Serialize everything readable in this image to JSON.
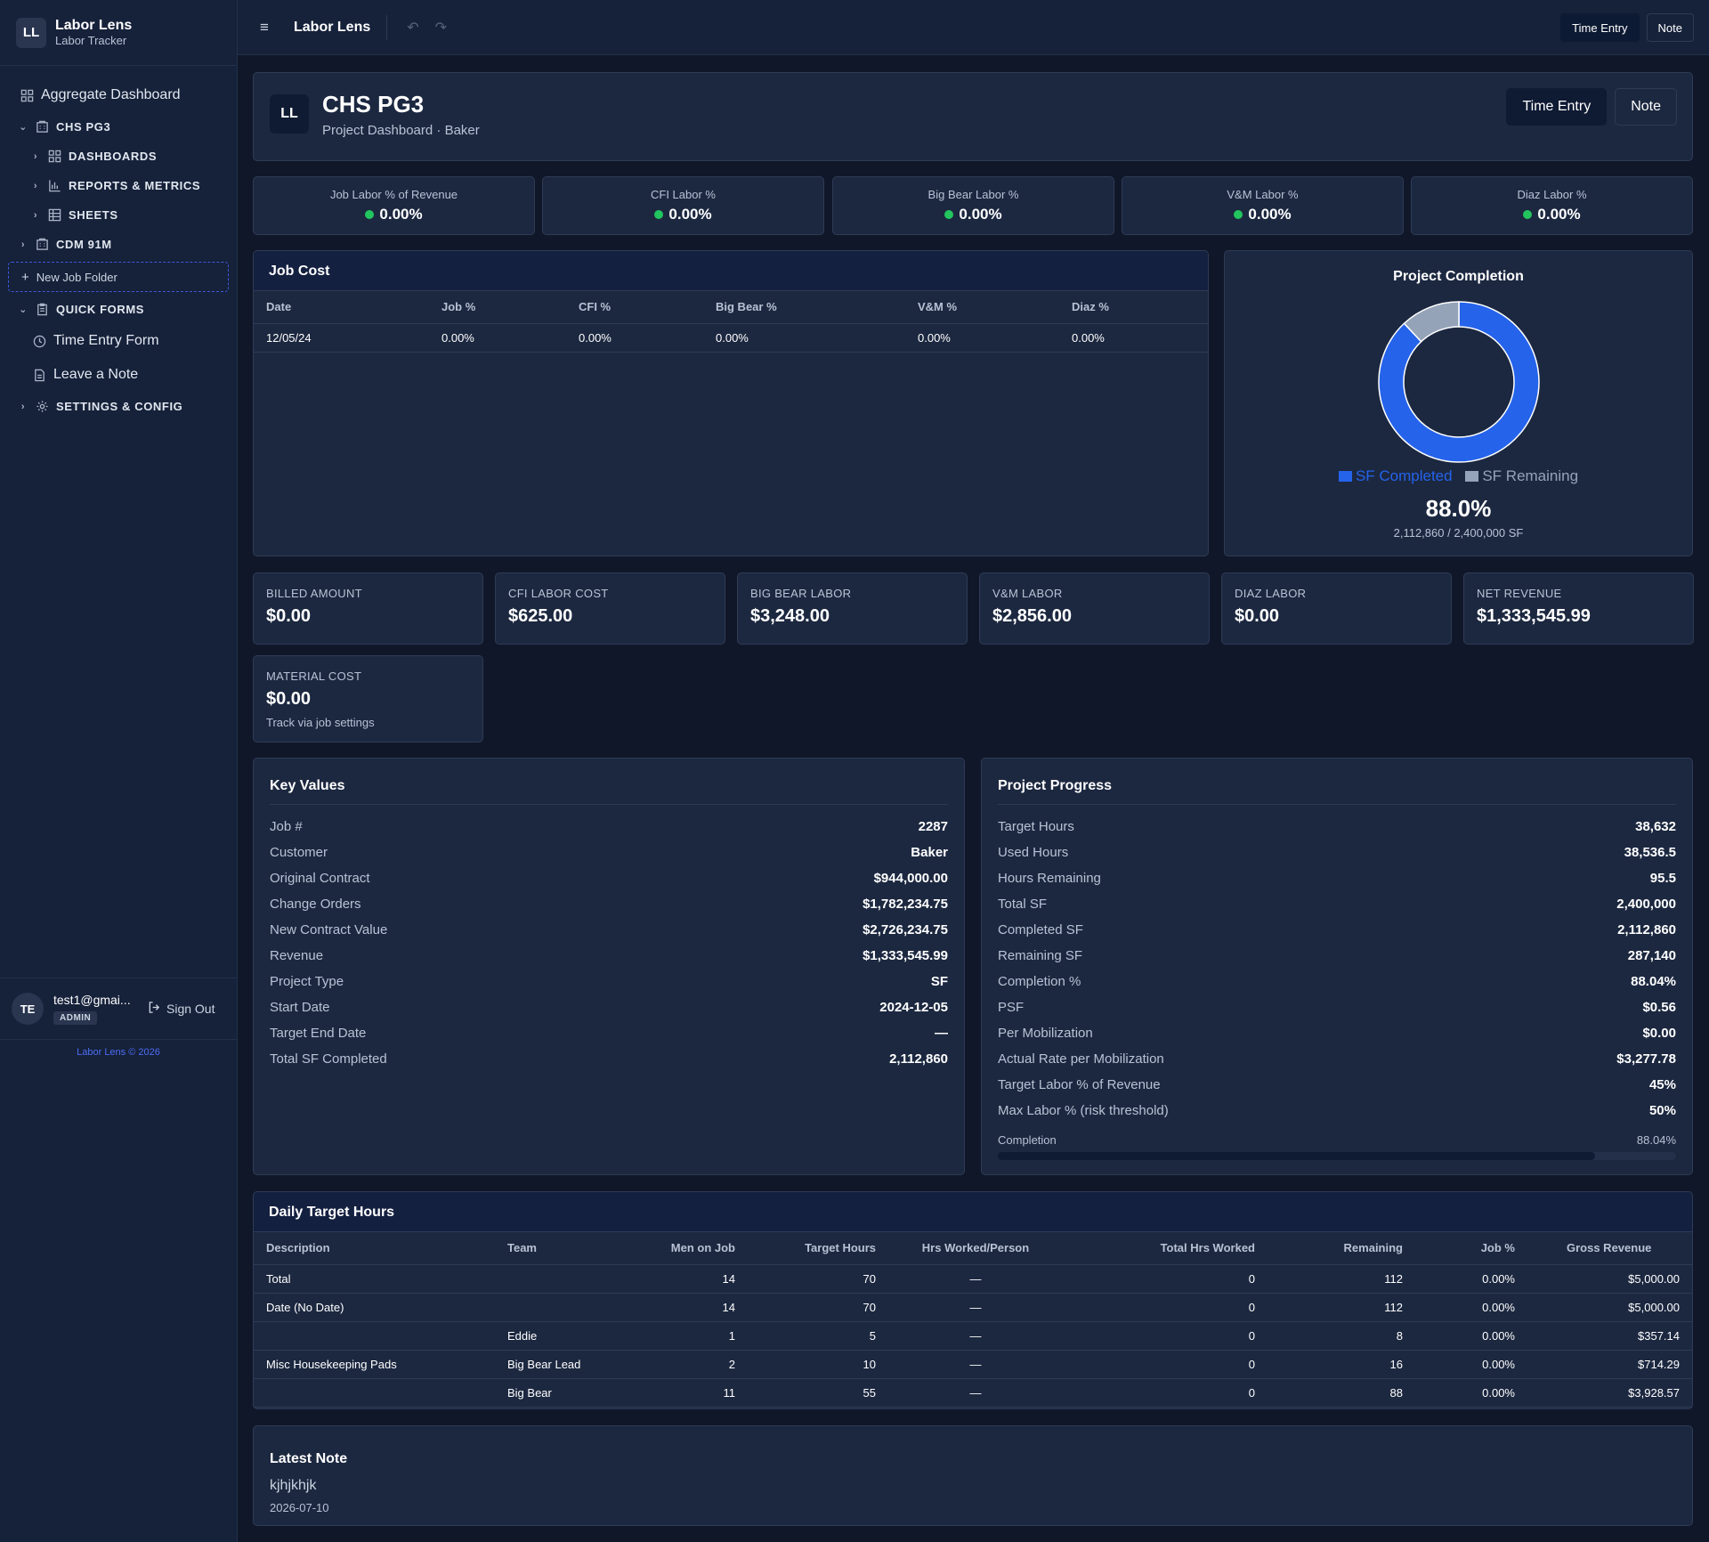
{
  "sidebar": {
    "logo": "LL",
    "app_name": "Labor Lens",
    "app_sub": "Labor Tracker",
    "items": {
      "aggregate": "Aggregate Dashboard",
      "project": "CHS PG3",
      "dashboards": "DASHBOARDS",
      "reports": "REPORTS & METRICS",
      "sheets": "SHEETS",
      "project2": "CDM 91M",
      "new_folder": "New Job Folder",
      "quick_forms": "QUICK FORMS",
      "time_entry_form": "Time Entry Form",
      "leave_note": "Leave a Note",
      "settings": "SETTINGS & CONFIG"
    },
    "user": {
      "initials": "TE",
      "email": "test1@gmai...",
      "role": "ADMIN",
      "sign_out": "Sign Out"
    },
    "copyright": "Labor Lens © 2026"
  },
  "topbar": {
    "title": "Labor Lens",
    "time_entry": "Time Entry",
    "note": "Note"
  },
  "header": {
    "logo": "LL",
    "title": "CHS PG3",
    "subtitle": "Project Dashboard · Baker",
    "time_entry": "Time Entry",
    "note": "Note"
  },
  "kpis": [
    {
      "label": "Job Labor % of Revenue",
      "value": "0.00%"
    },
    {
      "label": "CFI Labor %",
      "value": "0.00%"
    },
    {
      "label": "Big Bear Labor %",
      "value": "0.00%"
    },
    {
      "label": "V&M Labor %",
      "value": "0.00%"
    },
    {
      "label": "Diaz Labor %",
      "value": "0.00%"
    }
  ],
  "job_cost": {
    "title": "Job Cost",
    "columns": [
      "Date",
      "Job %",
      "CFI %",
      "Big Bear %",
      "V&M %",
      "Diaz %"
    ],
    "rows": [
      [
        "12/05/24",
        "0.00%",
        "0.00%",
        "0.00%",
        "0.00%",
        "0.00%"
      ]
    ]
  },
  "completion": {
    "title": "Project Completion",
    "legend_completed": "SF Completed",
    "legend_remaining": "SF Remaining",
    "color_completed": "#2563eb",
    "color_remaining": "#94a3b8",
    "percent": "88.0%",
    "subtitle": "2,112,860 / 2,400,000 SF"
  },
  "chart_data": {
    "type": "pie",
    "title": "Project Completion",
    "categories": [
      "SF Completed",
      "SF Remaining"
    ],
    "values": [
      2112860,
      287140
    ],
    "colors": [
      "#2563eb",
      "#94a3b8"
    ],
    "legend_position": "bottom"
  },
  "money": [
    {
      "label": "BILLED AMOUNT",
      "value": "$0.00"
    },
    {
      "label": "CFI LABOR COST",
      "value": "$625.00"
    },
    {
      "label": "BIG BEAR LABOR",
      "value": "$3,248.00"
    },
    {
      "label": "V&M LABOR",
      "value": "$2,856.00"
    },
    {
      "label": "DIAZ LABOR",
      "value": "$0.00"
    },
    {
      "label": "NET REVENUE",
      "value": "$1,333,545.99"
    },
    {
      "label": "MATERIAL COST",
      "value": "$0.00",
      "note": "Track via job settings"
    }
  ],
  "key_values": {
    "title": "Key Values",
    "rows": [
      {
        "k": "Job #",
        "v": "2287"
      },
      {
        "k": "Customer",
        "v": "Baker"
      },
      {
        "k": "Original Contract",
        "v": "$944,000.00"
      },
      {
        "k": "Change Orders",
        "v": "$1,782,234.75"
      },
      {
        "k": "New Contract Value",
        "v": "$2,726,234.75"
      },
      {
        "k": "Revenue",
        "v": "$1,333,545.99"
      },
      {
        "k": "Project Type",
        "v": "SF"
      },
      {
        "k": "Start Date",
        "v": "2024-12-05"
      },
      {
        "k": "Target End Date",
        "v": "—"
      },
      {
        "k": "Total SF Completed",
        "v": "2,112,860"
      }
    ]
  },
  "progress": {
    "title": "Project Progress",
    "rows": [
      {
        "k": "Target Hours",
        "v": "38,632"
      },
      {
        "k": "Used Hours",
        "v": "38,536.5"
      },
      {
        "k": "Hours Remaining",
        "v": "95.5"
      },
      {
        "k": "Total SF",
        "v": "2,400,000"
      },
      {
        "k": "Completed SF",
        "v": "2,112,860"
      },
      {
        "k": "Remaining SF",
        "v": "287,140"
      },
      {
        "k": "Completion %",
        "v": "88.04%"
      },
      {
        "k": "PSF",
        "v": "$0.56"
      },
      {
        "k": "Per Mobilization",
        "v": "$0.00"
      },
      {
        "k": "Actual Rate per Mobilization",
        "v": "$3,277.78"
      },
      {
        "k": "Target Labor % of Revenue",
        "v": "45%"
      },
      {
        "k": "Max Labor % (risk threshold)",
        "v": "50%"
      }
    ],
    "bar_label": "Completion",
    "bar_value": "88.04%",
    "bar_fraction": 0.8804
  },
  "daily": {
    "title": "Daily Target Hours",
    "columns": [
      "Description",
      "Team",
      "Men on Job",
      "Target Hours",
      "Hrs Worked/Person",
      "Total Hrs Worked",
      "Remaining",
      "Job %",
      "Gross Revenue"
    ],
    "rows": [
      [
        "Total",
        "",
        "14",
        "70",
        "—",
        "0",
        "112",
        "0.00%",
        "$5,000.00"
      ],
      [
        "Date (No Date)",
        "",
        "14",
        "70",
        "—",
        "0",
        "112",
        "0.00%",
        "$5,000.00"
      ],
      [
        "",
        "Eddie",
        "1",
        "5",
        "—",
        "0",
        "8",
        "0.00%",
        "$357.14"
      ],
      [
        "Misc Housekeeping Pads",
        "Big Bear Lead",
        "2",
        "10",
        "—",
        "0",
        "16",
        "0.00%",
        "$714.29"
      ],
      [
        "",
        "Big Bear",
        "11",
        "55",
        "—",
        "0",
        "88",
        "0.00%",
        "$3,928.57"
      ]
    ]
  },
  "latest_note": {
    "title": "Latest Note",
    "text": "kjhjkhjk",
    "date": "2026-07-10"
  }
}
